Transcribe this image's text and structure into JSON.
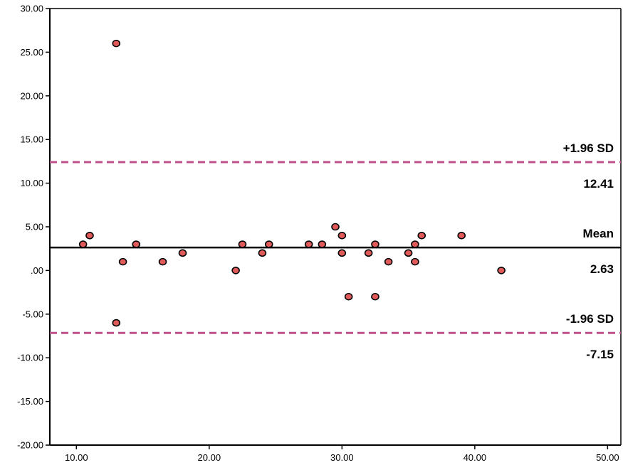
{
  "chart_data": {
    "type": "scatter",
    "title": "",
    "xlabel": "",
    "ylabel": "",
    "xlim": [
      8,
      51
    ],
    "ylim": [
      -20,
      30
    ],
    "x_ticks": [
      10,
      20,
      30,
      40,
      50
    ],
    "x_tick_labels": [
      "10.00",
      "20.00",
      "30.00",
      "40.00",
      "50.00"
    ],
    "y_ticks": [
      -20,
      -15,
      -10,
      -5,
      0,
      5,
      10,
      15,
      20,
      25,
      30
    ],
    "y_tick_labels": [
      "-20.00",
      "-15.00",
      "-10.00",
      "-5.00",
      ".00",
      "5.00",
      "10.00",
      "15.00",
      "20.00",
      "25.00",
      "30.00"
    ],
    "grid": false,
    "point_color": "#e05a5a",
    "points": [
      {
        "x": 10.5,
        "y": 3
      },
      {
        "x": 11,
        "y": 4
      },
      {
        "x": 13,
        "y": 26
      },
      {
        "x": 13,
        "y": -6
      },
      {
        "x": 13.5,
        "y": 1
      },
      {
        "x": 14.5,
        "y": 3
      },
      {
        "x": 16.5,
        "y": 1
      },
      {
        "x": 18,
        "y": 2
      },
      {
        "x": 22,
        "y": 0
      },
      {
        "x": 22.5,
        "y": 3
      },
      {
        "x": 24,
        "y": 2
      },
      {
        "x": 24.5,
        "y": 3
      },
      {
        "x": 27.5,
        "y": 3
      },
      {
        "x": 28.5,
        "y": 3
      },
      {
        "x": 29.5,
        "y": 5
      },
      {
        "x": 30,
        "y": 4
      },
      {
        "x": 30,
        "y": 2
      },
      {
        "x": 30.5,
        "y": -3
      },
      {
        "x": 32,
        "y": 2
      },
      {
        "x": 32.5,
        "y": 3
      },
      {
        "x": 32.5,
        "y": -3
      },
      {
        "x": 33.5,
        "y": 1
      },
      {
        "x": 35,
        "y": 2
      },
      {
        "x": 35.5,
        "y": 3
      },
      {
        "x": 35.5,
        "y": 1
      },
      {
        "x": 36,
        "y": 4
      },
      {
        "x": 39,
        "y": 4
      },
      {
        "x": 42,
        "y": 0
      }
    ],
    "reference_lines": [
      {
        "name": "+1.96 SD",
        "value": 12.41,
        "value_label": "12.41",
        "style": "dashed",
        "color": "#c0508a"
      },
      {
        "name": "Mean",
        "value": 2.63,
        "value_label": "2.63",
        "style": "solid",
        "color": "#000000"
      },
      {
        "name": "-1.96 SD",
        "value": -7.15,
        "value_label": "-7.15",
        "style": "dashed",
        "color": "#c0508a"
      }
    ]
  }
}
